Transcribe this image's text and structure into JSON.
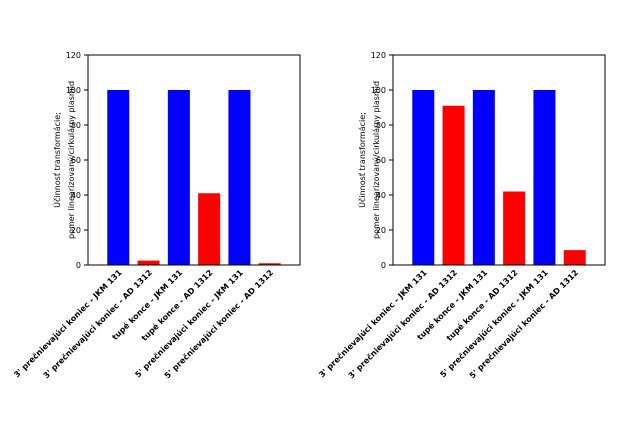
{
  "chart_data": [
    {
      "type": "bar",
      "y_label": [
        "Účinnosť transformácie;",
        "pomer linearizovaný/cirkulárny plasmid"
      ],
      "categories": [
        "3' prečnievajúci koniec - JKM 131",
        "3' prečnievajúci koniec - AD 1312",
        "tupé konce - JKM 131",
        "tupé konce - AD 1312",
        "5' prečnievajúci koniec - JKM 131",
        "5' prečnievajúci koniec - AD 1312"
      ],
      "values": [
        100,
        2.5,
        100,
        41,
        100,
        1
      ],
      "colors": [
        "#0000ff",
        "#ff0000",
        "#0000ff",
        "#ff0000",
        "#0000ff",
        "#ff0000"
      ],
      "ylim": [
        0,
        120
      ],
      "yticks": [
        0,
        20,
        40,
        60,
        80,
        100,
        120
      ]
    },
    {
      "type": "bar",
      "y_label": [
        "Účinnosť transformácie;",
        "pomer linearizovaný/cirkulárny plasmid"
      ],
      "categories": [
        "3' prečnievajúci koniec - JKM 131",
        "3' prečnievajúci koniec - AD 1312",
        "tupé konce - JKM 131",
        "tupé konce - AD 1312",
        "5' prečnievajúci koniec - JKM 131",
        "5' prečnievajúci koniec - AD 1312"
      ],
      "values": [
        100,
        91,
        100,
        42,
        100,
        8.5
      ],
      "colors": [
        "#0000ff",
        "#ff0000",
        "#0000ff",
        "#ff0000",
        "#0000ff",
        "#ff0000"
      ],
      "ylim": [
        0,
        120
      ],
      "yticks": [
        0,
        20,
        40,
        60,
        80,
        100,
        120
      ]
    }
  ]
}
